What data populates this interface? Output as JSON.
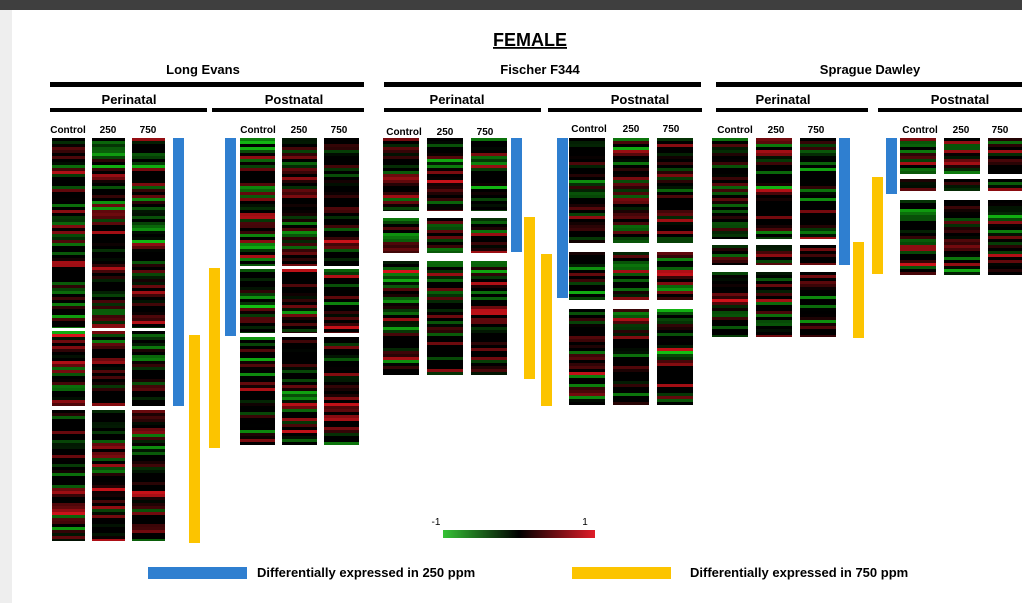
{
  "title": "FEMALE",
  "colors": {
    "blue": "#2f7fd0",
    "yellow": "#fcc400",
    "low": "#35c235",
    "mid": "#000000",
    "high": "#e01c28"
  },
  "scale": {
    "min_label": "-1",
    "max_label": "1"
  },
  "legend": [
    {
      "label": "Differentially expressed in 250 ppm",
      "color": "#2f7fd0"
    },
    {
      "label": "Differentially expressed in  750 ppm",
      "color": "#fcc400"
    }
  ],
  "chart_data": {
    "type": "heatmap",
    "title": "FEMALE",
    "value_range": [
      -1,
      1
    ],
    "color_scale": [
      "#35c235",
      "#000000",
      "#e01c28"
    ],
    "strains": [
      {
        "name": "Long Evans",
        "periods": [
          {
            "name": "Perinatal",
            "columns": [
              "Control",
              "250",
              "750"
            ]
          },
          {
            "name": "Postnatal",
            "columns": [
              "Control",
              "250",
              "750"
            ]
          }
        ]
      },
      {
        "name": "Fischer F344",
        "periods": [
          {
            "name": "Perinatal",
            "columns": [
              "Control",
              "250",
              "750"
            ]
          },
          {
            "name": "Postnatal",
            "columns": [
              "Control",
              "250",
              "750"
            ]
          }
        ]
      },
      {
        "name": "Sprague Dawley",
        "periods": [
          {
            "name": "Perinatal",
            "columns": [
              "Control",
              "250",
              "750"
            ]
          },
          {
            "name": "Postnatal",
            "columns": [
              "Control",
              "250",
              "750"
            ]
          }
        ]
      }
    ]
  }
}
